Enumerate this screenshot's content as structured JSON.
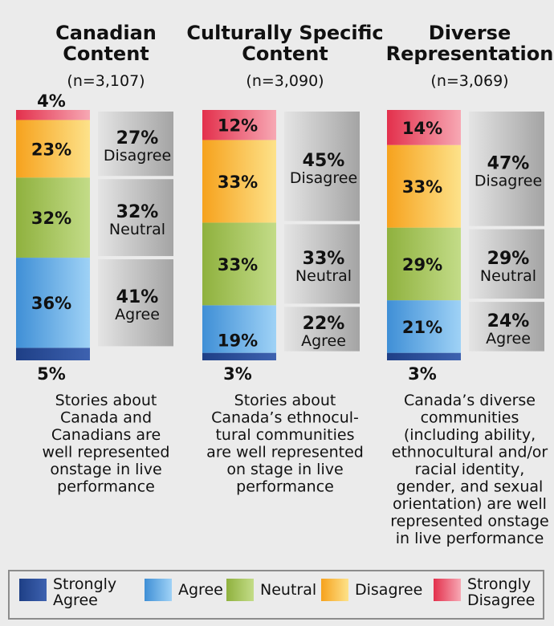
{
  "chart_data": {
    "type": "stacked-bar",
    "panels": [
      {
        "title": "Canadian\nContent",
        "n": "(n=3,107)",
        "segments": [
          5,
          36,
          32,
          23,
          4
        ],
        "labels": [
          "5%",
          "36%",
          "32%",
          "23%",
          "4%"
        ],
        "groups": [
          {
            "pct": "41%",
            "label": "Agree"
          },
          {
            "pct": "32%",
            "label": "Neutral"
          },
          {
            "pct": "27%",
            "label": "Disagree"
          }
        ],
        "caption": "Stories about\nCanada and\nCanadians are\nwell represented\nonstage in live\nperformance"
      },
      {
        "title": "Culturally Specific\nContent",
        "n": "(n=3,090)",
        "segments": [
          3,
          19,
          33,
          33,
          12
        ],
        "labels": [
          "3%",
          "19%",
          "33%",
          "33%",
          "12%"
        ],
        "groups": [
          {
            "pct": "22%",
            "label": "Agree"
          },
          {
            "pct": "33%",
            "label": "Neutral"
          },
          {
            "pct": "45%",
            "label": "Disagree"
          }
        ],
        "caption": "Stories about\nCanada’s ethnocul-\ntural communities\nare well represented\non stage in live\nperformance"
      },
      {
        "title": "Diverse\nRepresentation",
        "n": "(n=3,069)",
        "segments": [
          3,
          21,
          29,
          33,
          14
        ],
        "labels": [
          "3%",
          "21%",
          "29%",
          "33%",
          "14%"
        ],
        "groups": [
          {
            "pct": "24%",
            "label": "Agree"
          },
          {
            "pct": "29%",
            "label": "Neutral"
          },
          {
            "pct": "47%",
            "label": "Disagree"
          }
        ],
        "caption": "Canada’s diverse\ncommunities\n(including ability,\nethnocultural and/or\nracial identity,\ngender, and sexual\norientation) are well\nrepresented onstage\nin live performance"
      }
    ],
    "legend": [
      "Strongly\nAgree",
      "Agree",
      "Neutral",
      "Disagree",
      "Strongly\nDisagree"
    ],
    "colors": {
      "strongly_agree": [
        "#1e3f86",
        "#3e62b0"
      ],
      "agree": [
        "#3f8fd6",
        "#9fd2f6"
      ],
      "neutral": [
        "#8fb13e",
        "#c3dc88"
      ],
      "disagree": [
        "#f6a21d",
        "#fde28a"
      ],
      "strongly_disagree": [
        "#e3304c",
        "#f7a8b4"
      ],
      "group_box": [
        "#dedede",
        "#a8a8a8"
      ]
    }
  }
}
